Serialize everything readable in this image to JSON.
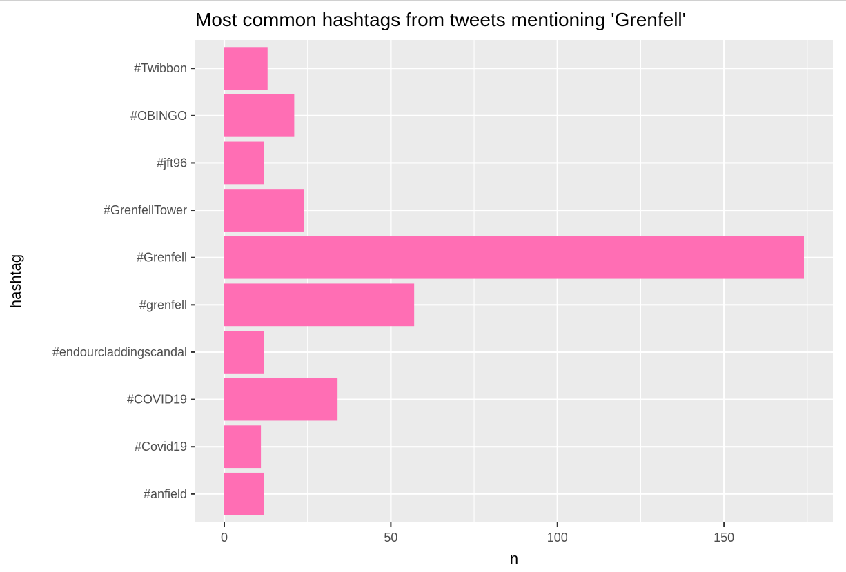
{
  "chart_data": {
    "type": "bar",
    "orientation": "horizontal",
    "title": "Most common hashtags from tweets mentioning 'Grenfell'",
    "xlabel": "n",
    "ylabel": "hashtag",
    "categories": [
      "#Twibbon",
      "#OBINGO",
      "#jft96",
      "#GrenfellTower",
      "#Grenfell",
      "#grenfell",
      "#endourcladdingscandal",
      "#COVID19",
      "#Covid19",
      "#anfield"
    ],
    "values": [
      13,
      21,
      12,
      24,
      174,
      57,
      12,
      34,
      11,
      12
    ],
    "xlim": [
      -8.7,
      182.7
    ],
    "xticks": [
      0,
      50,
      100,
      150
    ],
    "xtick_labels": [
      "0",
      "50",
      "100",
      "150"
    ],
    "grid": true,
    "colors": {
      "bar": "#ff6eb4",
      "panel_background": "#ebebeb",
      "grid": "#ffffff",
      "text": "#4d4d4d"
    }
  }
}
